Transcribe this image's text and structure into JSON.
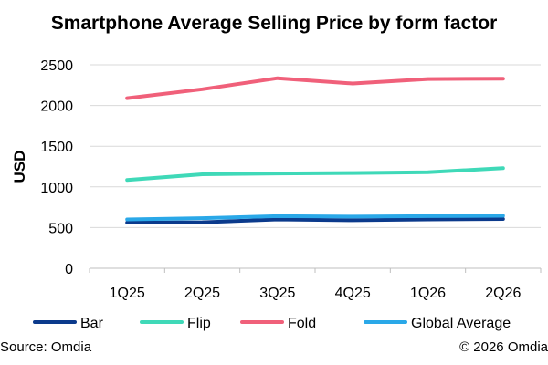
{
  "source": "Source: Omdia",
  "copyright": "© 2026 Omdia",
  "chart_data": {
    "type": "line",
    "title": "Smartphone Average Selling Price by form factor",
    "xlabel": "",
    "ylabel": "USD",
    "categories": [
      "1Q25",
      "2Q25",
      "3Q25",
      "4Q25",
      "1Q26",
      "2Q26"
    ],
    "ylim": [
      0,
      2500
    ],
    "yticks": [
      0,
      500,
      1000,
      1500,
      2000,
      2500
    ],
    "grid": true,
    "legend_position": "bottom",
    "series": [
      {
        "name": "Bar",
        "color": "#0b3a8c",
        "values": [
          560,
          565,
          600,
          590,
          600,
          605
        ]
      },
      {
        "name": "Flip",
        "color": "#3fd9b8",
        "values": [
          1085,
          1155,
          1165,
          1170,
          1180,
          1230
        ]
      },
      {
        "name": "Fold",
        "color": "#f0607a",
        "values": [
          2090,
          2200,
          2335,
          2270,
          2325,
          2330
        ]
      },
      {
        "name": "Global Average",
        "color": "#2aa8e8",
        "values": [
          600,
          615,
          640,
          635,
          640,
          645
        ]
      }
    ]
  }
}
